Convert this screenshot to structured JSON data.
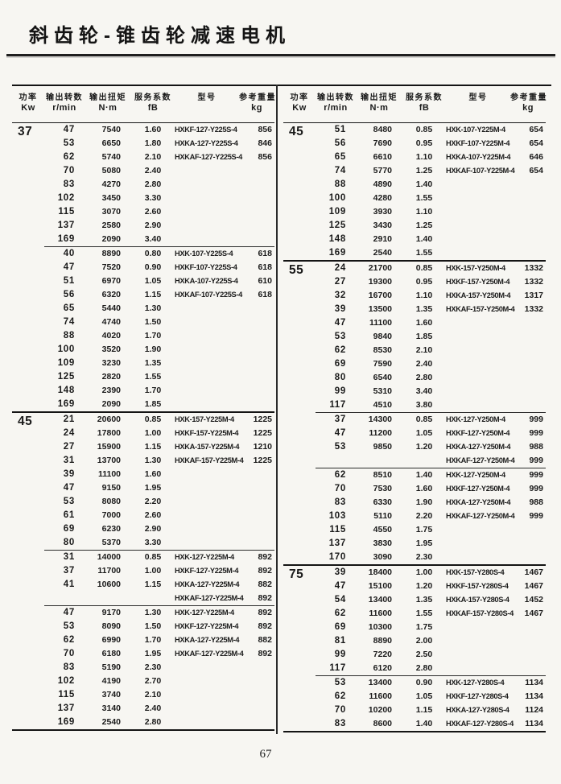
{
  "colors": {
    "paper": "#f7f6f2",
    "ink": "#1a1a1a"
  },
  "page": {
    "title": "斜齿轮-锥齿轮减速电机",
    "page_number": "67"
  },
  "table_header": {
    "power_cn": "功率",
    "power_en": "Kw",
    "speed_cn": "输出转数",
    "speed_en": "r/min",
    "torque_cn": "输出扭矩",
    "torque_en": "N·m",
    "service_cn": "服务系数",
    "service_en": "fB",
    "model_cn": "型号",
    "model_en": "",
    "weight_cn": "参考重量",
    "weight_en": "kg"
  },
  "tables": {
    "left": [
      {
        "power": "37",
        "sep": "none",
        "rows": [
          [
            "47",
            "7540",
            "1.60",
            "HXKF-127-Y225S-4",
            "856"
          ],
          [
            "53",
            "6650",
            "1.80",
            "HXKA-127-Y225S-4",
            "846"
          ],
          [
            "62",
            "5740",
            "2.10",
            "HXKAF-127-Y225S-4",
            "856"
          ],
          [
            "70",
            "5080",
            "2.40",
            "",
            ""
          ],
          [
            "83",
            "4270",
            "2.80",
            "",
            ""
          ],
          [
            "102",
            "3450",
            "3.30",
            "",
            ""
          ],
          [
            "115",
            "3070",
            "2.60",
            "",
            ""
          ],
          [
            "137",
            "2580",
            "2.90",
            "",
            ""
          ],
          [
            "169",
            "2090",
            "3.40",
            "",
            ""
          ]
        ]
      },
      {
        "power": "",
        "sep": "minor",
        "rows": [
          [
            "40",
            "8890",
            "0.80",
            "HXK-107-Y225S-4",
            "618"
          ],
          [
            "47",
            "7520",
            "0.90",
            "HXKF-107-Y225S-4",
            "618"
          ],
          [
            "51",
            "6970",
            "1.05",
            "HXKA-107-Y225S-4",
            "610"
          ],
          [
            "56",
            "6320",
            "1.15",
            "HXKAF-107-Y225S-4",
            "618"
          ],
          [
            "65",
            "5440",
            "1.30",
            "",
            ""
          ],
          [
            "74",
            "4740",
            "1.50",
            "",
            ""
          ],
          [
            "88",
            "4020",
            "1.70",
            "",
            ""
          ],
          [
            "100",
            "3520",
            "1.90",
            "",
            ""
          ],
          [
            "109",
            "3230",
            "1.35",
            "",
            ""
          ],
          [
            "125",
            "2820",
            "1.55",
            "",
            ""
          ],
          [
            "148",
            "2390",
            "1.70",
            "",
            ""
          ],
          [
            "169",
            "2090",
            "1.85",
            "",
            ""
          ]
        ]
      },
      {
        "power": "45",
        "sep": "major",
        "rows": [
          [
            "21",
            "20600",
            "0.85",
            "HXK-157-Y225M-4",
            "1225"
          ],
          [
            "24",
            "17800",
            "1.00",
            "HXKF-157-Y225M-4",
            "1225"
          ],
          [
            "27",
            "15900",
            "1.15",
            "HXKA-157-Y225M-4",
            "1210"
          ],
          [
            "31",
            "13700",
            "1.30",
            "HXKAF-157-Y225M-4",
            "1225"
          ],
          [
            "39",
            "11100",
            "1.60",
            "",
            ""
          ],
          [
            "47",
            "9150",
            "1.95",
            "",
            ""
          ],
          [
            "53",
            "8080",
            "2.20",
            "",
            ""
          ],
          [
            "61",
            "7000",
            "2.60",
            "",
            ""
          ],
          [
            "69",
            "6230",
            "2.90",
            "",
            ""
          ],
          [
            "80",
            "5370",
            "3.30",
            "",
            ""
          ]
        ]
      },
      {
        "power": "",
        "sep": "minor",
        "rows": [
          [
            "31",
            "14000",
            "0.85",
            "HXK-127-Y225M-4",
            "892"
          ],
          [
            "37",
            "11700",
            "1.00",
            "HXKF-127-Y225M-4",
            "892"
          ],
          [
            "41",
            "10600",
            "1.15",
            "HXKA-127-Y225M-4",
            "882"
          ],
          [
            "",
            "",
            "",
            "HXKAF-127-Y225M-4",
            "892"
          ]
        ]
      },
      {
        "power": "",
        "sep": "minor",
        "rows": [
          [
            "47",
            "9170",
            "1.30",
            "HXK-127-Y225M-4",
            "892"
          ],
          [
            "53",
            "8090",
            "1.50",
            "HXKF-127-Y225M-4",
            "892"
          ],
          [
            "62",
            "6990",
            "1.70",
            "HXKA-127-Y225M-4",
            "882"
          ],
          [
            "70",
            "6180",
            "1.95",
            "HXKAF-127-Y225M-4",
            "892"
          ],
          [
            "83",
            "5190",
            "2.30",
            "",
            ""
          ],
          [
            "102",
            "4190",
            "2.70",
            "",
            ""
          ],
          [
            "115",
            "3740",
            "2.10",
            "",
            ""
          ],
          [
            "137",
            "3140",
            "2.40",
            "",
            ""
          ],
          [
            "169",
            "2540",
            "2.80",
            "",
            ""
          ]
        ]
      }
    ],
    "right": [
      {
        "power": "45",
        "sep": "none",
        "rows": [
          [
            "51",
            "8480",
            "0.85",
            "HXK-107-Y225M-4",
            "654"
          ],
          [
            "56",
            "7690",
            "0.95",
            "HXKF-107-Y225M-4",
            "654"
          ],
          [
            "65",
            "6610",
            "1.10",
            "HXKA-107-Y225M-4",
            "646"
          ],
          [
            "74",
            "5770",
            "1.25",
            "HXKAF-107-Y225M-4",
            "654"
          ],
          [
            "88",
            "4890",
            "1.40",
            "",
            ""
          ],
          [
            "100",
            "4280",
            "1.55",
            "",
            ""
          ],
          [
            "109",
            "3930",
            "1.10",
            "",
            ""
          ],
          [
            "125",
            "3430",
            "1.25",
            "",
            ""
          ],
          [
            "148",
            "2910",
            "1.40",
            "",
            ""
          ],
          [
            "169",
            "2540",
            "1.55",
            "",
            ""
          ]
        ]
      },
      {
        "power": "55",
        "sep": "major",
        "rows": [
          [
            "24",
            "21700",
            "0.85",
            "HXK-157-Y250M-4",
            "1332"
          ],
          [
            "27",
            "19300",
            "0.95",
            "HXKF-157-Y250M-4",
            "1332"
          ],
          [
            "32",
            "16700",
            "1.10",
            "HXKA-157-Y250M-4",
            "1317"
          ],
          [
            "39",
            "13500",
            "1.35",
            "HXKAF-157-Y250M-4",
            "1332"
          ],
          [
            "47",
            "11100",
            "1.60",
            "",
            ""
          ],
          [
            "53",
            "9840",
            "1.85",
            "",
            ""
          ],
          [
            "62",
            "8530",
            "2.10",
            "",
            ""
          ],
          [
            "69",
            "7590",
            "2.40",
            "",
            ""
          ],
          [
            "80",
            "6540",
            "2.80",
            "",
            ""
          ],
          [
            "99",
            "5310",
            "3.40",
            "",
            ""
          ],
          [
            "117",
            "4510",
            "3.80",
            "",
            ""
          ]
        ]
      },
      {
        "power": "",
        "sep": "minor",
        "rows": [
          [
            "37",
            "14300",
            "0.85",
            "HXK-127-Y250M-4",
            "999"
          ],
          [
            "47",
            "11200",
            "1.05",
            "HXKF-127-Y250M-4",
            "999"
          ],
          [
            "53",
            "9850",
            "1.20",
            "HXKA-127-Y250M-4",
            "988"
          ],
          [
            "",
            "",
            "",
            "HXKAF-127-Y250M-4",
            "999"
          ]
        ]
      },
      {
        "power": "",
        "sep": "minor",
        "rows": [
          [
            "62",
            "8510",
            "1.40",
            "HXK-127-Y250M-4",
            "999"
          ],
          [
            "70",
            "7530",
            "1.60",
            "HXKF-127-Y250M-4",
            "999"
          ],
          [
            "83",
            "6330",
            "1.90",
            "HXKA-127-Y250M-4",
            "988"
          ],
          [
            "103",
            "5110",
            "2.20",
            "HXKAF-127-Y250M-4",
            "999"
          ],
          [
            "115",
            "4550",
            "1.75",
            "",
            ""
          ],
          [
            "137",
            "3830",
            "1.95",
            "",
            ""
          ],
          [
            "170",
            "3090",
            "2.30",
            "",
            ""
          ]
        ]
      },
      {
        "power": "75",
        "sep": "major",
        "rows": [
          [
            "39",
            "18400",
            "1.00",
            "HXK-157-Y280S-4",
            "1467"
          ],
          [
            "47",
            "15100",
            "1.20",
            "HXKF-157-Y280S-4",
            "1467"
          ],
          [
            "54",
            "13400",
            "1.35",
            "HXKA-157-Y280S-4",
            "1452"
          ],
          [
            "62",
            "11600",
            "1.55",
            "HXKAF-157-Y280S-4",
            "1467"
          ],
          [
            "69",
            "10300",
            "1.75",
            "",
            ""
          ],
          [
            "81",
            "8890",
            "2.00",
            "",
            ""
          ],
          [
            "99",
            "7220",
            "2.50",
            "",
            ""
          ],
          [
            "117",
            "6120",
            "2.80",
            "",
            ""
          ]
        ]
      },
      {
        "power": "",
        "sep": "minor",
        "rows": [
          [
            "53",
            "13400",
            "0.90",
            "HXK-127-Y280S-4",
            "1134"
          ],
          [
            "62",
            "11600",
            "1.05",
            "HXKF-127-Y280S-4",
            "1134"
          ],
          [
            "70",
            "10200",
            "1.15",
            "HXKA-127-Y280S-4",
            "1124"
          ],
          [
            "83",
            "8600",
            "1.40",
            "HXKAF-127-Y280S-4",
            "1134"
          ]
        ]
      }
    ]
  }
}
